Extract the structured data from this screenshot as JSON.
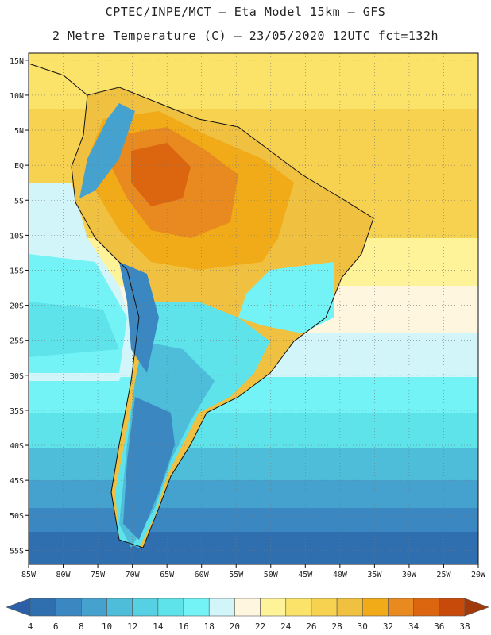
{
  "header": {
    "title_line1": "CPTEC/INPE/MCT –  Eta Model 15km – GFS",
    "title_line2": "2 Metre Temperature (C) – 23/05/2020 12UTC fct=132h"
  },
  "map": {
    "lat_ticks": [
      "15N",
      "10N",
      "5N",
      "EQ",
      "5S",
      "10S",
      "15S",
      "20S",
      "25S",
      "30S",
      "35S",
      "40S",
      "45S",
      "50S",
      "55S"
    ],
    "lon_ticks": [
      "85W",
      "80W",
      "75W",
      "70W",
      "65W",
      "60W",
      "55W",
      "50W",
      "45W",
      "40W",
      "35W",
      "30W",
      "25W",
      "20W"
    ],
    "extent": {
      "lon_min": -85,
      "lon_max": -20,
      "lat_min": -57,
      "lat_max": 16
    }
  },
  "colorbar": {
    "labels": [
      "4",
      "6",
      "8",
      "10",
      "12",
      "14",
      "16",
      "18",
      "20",
      "22",
      "24",
      "26",
      "28",
      "30",
      "32",
      "34",
      "36",
      "38"
    ],
    "colors": [
      "#2b5fa6",
      "#2f6fb0",
      "#3b87c2",
      "#45a2cf",
      "#4dbdd9",
      "#55d1e3",
      "#5ee3ea",
      "#73f3f5",
      "#d2f5fa",
      "#fff6df",
      "#fff39a",
      "#fbe36a",
      "#f7d250",
      "#f0c040",
      "#f1aa18",
      "#e88a20",
      "#dc6610",
      "#c84a0a",
      "#a03a0a"
    ],
    "unit": "C"
  }
}
